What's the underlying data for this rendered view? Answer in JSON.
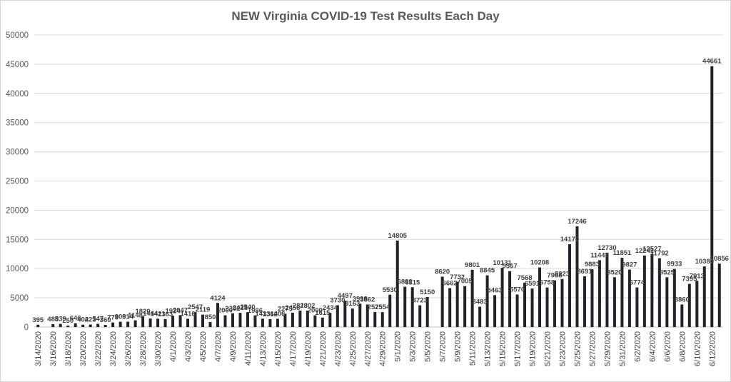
{
  "chart_data": {
    "type": "bar",
    "title": "NEW Virginia COVID-19 Test Results Each Day",
    "xlabel": "",
    "ylabel": "",
    "ylim": [
      0,
      50000
    ],
    "y_ticks": [
      0,
      5000,
      10000,
      15000,
      20000,
      25000,
      30000,
      35000,
      40000,
      45000,
      50000
    ],
    "grid": true,
    "legend": "none",
    "bar_color": "#1f2328",
    "categories": [
      "3/14/2020",
      "3/15/2020",
      "3/16/2020",
      "3/17/2020",
      "3/18/2020",
      "3/19/2020",
      "3/20/2020",
      "3/21/2020",
      "3/22/2020",
      "3/23/2020",
      "3/24/2020",
      "3/25/2020",
      "3/26/2020",
      "3/27/2020",
      "3/28/2020",
      "3/29/2020",
      "3/30/2020",
      "3/31/2020",
      "4/1/2020",
      "4/2/2020",
      "4/3/2020",
      "4/4/2020",
      "4/5/2020",
      "4/6/2020",
      "4/7/2020",
      "4/8/2020",
      "4/9/2020",
      "4/10/2020",
      "4/11/2020",
      "4/12/2020",
      "4/13/2020",
      "4/14/2020",
      "4/15/2020",
      "4/16/2020",
      "4/17/2020",
      "4/18/2020",
      "4/19/2020",
      "4/20/2020",
      "4/21/2020",
      "4/22/2020",
      "4/23/2020",
      "4/24/2020",
      "4/25/2020",
      "4/26/2020",
      "4/27/2020",
      "4/28/2020",
      "4/29/2020",
      "4/30/2020",
      "5/1/2020",
      "5/2/2020",
      "5/3/2020",
      "5/4/2020",
      "5/5/2020",
      "5/6/2020",
      "5/7/2020",
      "5/8/2020",
      "5/9/2020",
      "5/10/2020",
      "5/11/2020",
      "5/12/2020",
      "5/13/2020",
      "5/14/2020",
      "5/15/2020",
      "5/16/2020",
      "5/17/2020",
      "5/18/2020",
      "5/19/2020",
      "5/20/2020",
      "5/21/2020",
      "5/22/2020",
      "5/23/2020",
      "5/24/2020",
      "5/25/2020",
      "5/26/2020",
      "5/27/2020",
      "5/28/2020",
      "5/29/2020",
      "5/30/2020",
      "5/31/2020",
      "6/1/2020",
      "6/2/2020",
      "6/3/2020",
      "6/4/2020",
      "6/5/2020",
      "6/6/2020",
      "6/7/2020",
      "6/8/2020",
      "6/9/2020",
      "6/10/2020",
      "6/11/2020",
      "6/12/2020",
      "6/13/2020"
    ],
    "tick_labels": [
      "3/14/2020",
      "3/16/2020",
      "3/18/2020",
      "3/20/2020",
      "3/22/2020",
      "3/24/2020",
      "3/26/2020",
      "3/28/2020",
      "3/30/2020",
      "4/1/2020",
      "4/3/2020",
      "4/5/2020",
      "4/7/2020",
      "4/9/2020",
      "4/11/2020",
      "4/13/2020",
      "4/15/2020",
      "4/17/2020",
      "4/19/2020",
      "4/21/2020",
      "4/23/2020",
      "4/25/2020",
      "4/27/2020",
      "4/29/2020",
      "5/1/2020",
      "5/3/2020",
      "5/5/2020",
      "5/7/2020",
      "5/9/2020",
      "5/11/2020",
      "5/13/2020",
      "5/15/2020",
      "5/17/2020",
      "5/19/2020",
      "5/21/2020",
      "5/23/2020",
      "5/25/2020",
      "5/27/2020",
      "5/29/2020",
      "5/31/2020",
      "6/2/2020",
      "6/4/2020",
      "6/6/2020",
      "6/8/2020",
      "6/10/2020",
      "6/12/2020"
    ],
    "values": [
      395,
      0,
      488,
      539,
      250,
      646,
      402,
      423,
      547,
      360,
      779,
      906,
      914,
      1148,
      1820,
      1444,
      1421,
      1363,
      1924,
      2047,
      1416,
      2547,
      2119,
      850,
      4124,
      2000,
      2352,
      2428,
      2540,
      1986,
      1433,
      1362,
      1406,
      2275,
      2456,
      2818,
      2802,
      2000,
      1615,
      2434,
      3730,
      4497,
      3163,
      3998,
      3862,
      2575,
      2554,
      5530,
      14805,
      6892,
      6815,
      3723,
      5150,
      0,
      8620,
      6662,
      7732,
      7005,
      9801,
      3483,
      8845,
      5463,
      10131,
      9567,
      5570,
      7568,
      6591,
      10208,
      6758,
      7988,
      8223,
      14170,
      17246,
      8691,
      9883,
      11447,
      12730,
      8520,
      11851,
      9827,
      6774,
      12241,
      12527,
      11792,
      8525,
      9933,
      3860,
      7395,
      7913,
      10380,
      44661,
      10856
    ]
  }
}
